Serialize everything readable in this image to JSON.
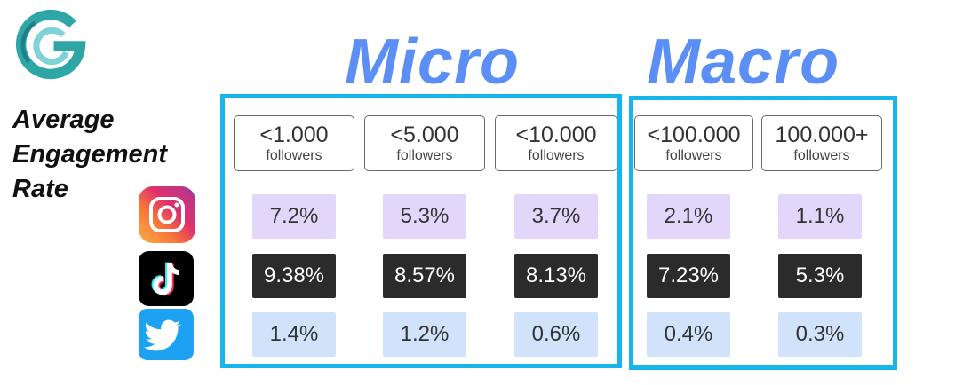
{
  "side_title": [
    "Average",
    "Engagement",
    "Rate"
  ],
  "groups": {
    "micro": "Micro",
    "macro": "Macro"
  },
  "columns": [
    {
      "main": "<1.000",
      "sub": "followers"
    },
    {
      "main": "<5.000",
      "sub": "followers"
    },
    {
      "main": "<10.000",
      "sub": "followers"
    },
    {
      "main": "<100.000",
      "sub": "followers"
    },
    {
      "main": "100.000+",
      "sub": "followers"
    }
  ],
  "icons": {
    "instagram": "instagram-icon",
    "tiktok": "tiktok-icon",
    "twitter": "twitter-icon",
    "logo": "brand-logo"
  },
  "colors": {
    "group_title": "#5b8ff5",
    "group_border": "#16b6ea",
    "instagram_cell": "#e3d6fb",
    "tiktok_cell": "#2b2b2b",
    "twitter_cell": "#d1e2fb"
  },
  "chart_data": {
    "type": "table",
    "title": "Average Engagement Rate",
    "column_groups": [
      {
        "name": "Micro",
        "categories": [
          "<1.000 followers",
          "<5.000 followers",
          "<10.000 followers"
        ]
      },
      {
        "name": "Macro",
        "categories": [
          "<100.000 followers",
          "100.000+ followers"
        ]
      }
    ],
    "categories": [
      "<1.000 followers",
      "<5.000 followers",
      "<10.000 followers",
      "<100.000 followers",
      "100.000+ followers"
    ],
    "series": [
      {
        "values": [
          7.2,
          5.3,
          3.7,
          2.1,
          1.1
        ],
        "labels": [
          "7.2%",
          "5.3%",
          "3.7%",
          "2.1%",
          "1.1%"
        ]
      },
      {
        "values": [
          9.38,
          8.57,
          8.13,
          7.23,
          5.3
        ],
        "labels": [
          "9.38%",
          "8.57%",
          "8.13%",
          "7.23%",
          "5.3%"
        ]
      },
      {
        "values": [
          1.4,
          1.2,
          0.6,
          0.4,
          0.3
        ],
        "labels": [
          "1.4%",
          "1.2%",
          "0.6%",
          "0.4%",
          "0.3%"
        ]
      }
    ]
  }
}
